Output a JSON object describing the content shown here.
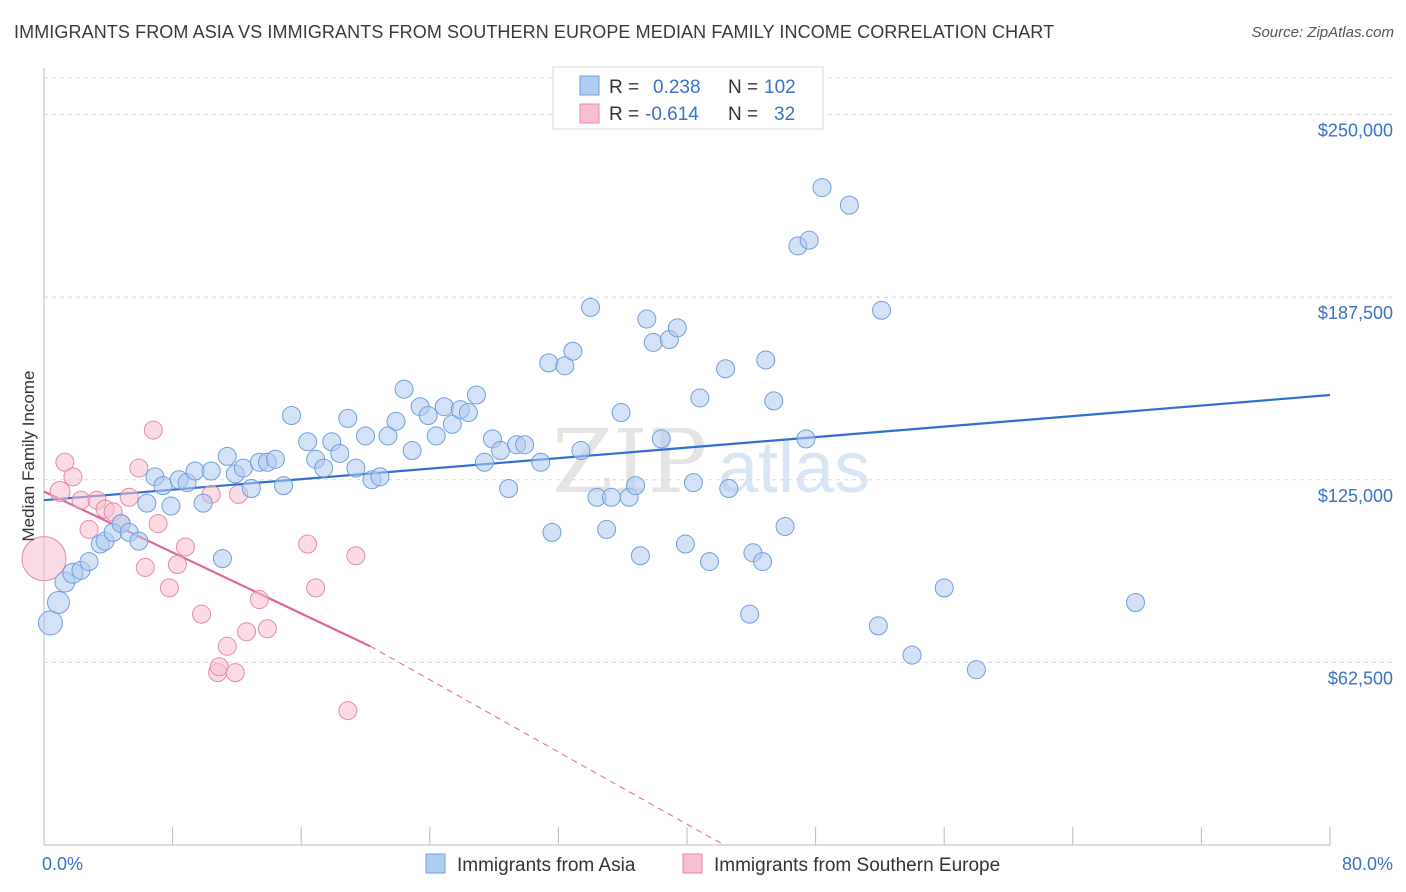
{
  "title": "IMMIGRANTS FROM ASIA VS IMMIGRANTS FROM SOUTHERN EUROPE MEDIAN FAMILY INCOME CORRELATION CHART",
  "source": "Source: ZipAtlas.com",
  "watermark": {
    "zip": "ZIP",
    "atlas": "atlas"
  },
  "legend": {
    "asia": {
      "r_label": "R =",
      "r_value": "0.238",
      "n_label": "N =",
      "n_value": "102"
    },
    "europe": {
      "r_label": "R =",
      "r_value": "-0.614",
      "n_label": "N =",
      "n_value": "32"
    }
  },
  "colors": {
    "asia_fill": "#aecbf0",
    "asia_stroke": "#6f9fdc",
    "asia_line": "#2e6fcf",
    "europe_fill": "#f7c0d0",
    "europe_stroke": "#e68aa8",
    "europe_line": "#e06591",
    "tick_label": "#3a72c4",
    "grid": "#d8d8d8"
  },
  "chart_data": {
    "type": "scatter",
    "title": "IMMIGRANTS FROM ASIA VS IMMIGRANTS FROM SOUTHERN EUROPE MEDIAN FAMILY INCOME CORRELATION CHART",
    "xlabel": "",
    "ylabel": "Median Family Income",
    "xlim": [
      0,
      80
    ],
    "ylim": [
      0,
      262500
    ],
    "x_tick_labels": [
      "0.0%",
      "80.0%"
    ],
    "y_ticks": [
      62500,
      125000,
      187500,
      250000
    ],
    "y_tick_labels": [
      "$62,500",
      "$125,000",
      "$187,500",
      "$250,000"
    ],
    "grid": true,
    "legend_position": "top-center",
    "series": [
      {
        "name": "Immigrants from Asia",
        "r": 0.238,
        "n": 102,
        "trend": {
          "x": [
            0,
            80
          ],
          "y": [
            118000,
            154000
          ]
        },
        "points": [
          [
            0.4,
            76000,
            12
          ],
          [
            0.9,
            83000,
            11
          ],
          [
            1.3,
            90000,
            10
          ],
          [
            1.8,
            93000,
            10
          ],
          [
            2.3,
            94000,
            9
          ],
          [
            2.8,
            97000,
            9
          ],
          [
            3.5,
            103000,
            9
          ],
          [
            3.8,
            104000,
            9
          ],
          [
            4.3,
            107000,
            9
          ],
          [
            4.8,
            110000,
            9
          ],
          [
            5.3,
            107000,
            9
          ],
          [
            5.9,
            104000,
            9
          ],
          [
            6.4,
            117000,
            9
          ],
          [
            6.9,
            126000,
            9
          ],
          [
            7.4,
            123000,
            9
          ],
          [
            7.9,
            116000,
            9
          ],
          [
            8.4,
            125000,
            9
          ],
          [
            8.9,
            124000,
            9
          ],
          [
            9.4,
            128000,
            9
          ],
          [
            9.9,
            117000,
            9
          ],
          [
            10.4,
            128000,
            9
          ],
          [
            11.1,
            98000,
            9
          ],
          [
            11.4,
            133000,
            9
          ],
          [
            11.9,
            127000,
            9
          ],
          [
            12.4,
            129000,
            9
          ],
          [
            12.9,
            122000,
            9
          ],
          [
            13.4,
            131000,
            9
          ],
          [
            13.9,
            131000,
            9
          ],
          [
            14.4,
            132000,
            9
          ],
          [
            14.9,
            123000,
            9
          ],
          [
            15.4,
            147000,
            9
          ],
          [
            16.4,
            138000,
            9
          ],
          [
            16.9,
            132000,
            9
          ],
          [
            17.4,
            129000,
            9
          ],
          [
            17.9,
            138000,
            9
          ],
          [
            18.4,
            134000,
            9
          ],
          [
            18.9,
            146000,
            9
          ],
          [
            19.4,
            129000,
            9
          ],
          [
            20.0,
            140000,
            9
          ],
          [
            20.4,
            125000,
            9
          ],
          [
            20.9,
            126000,
            9
          ],
          [
            21.4,
            140000,
            9
          ],
          [
            21.9,
            145000,
            9
          ],
          [
            22.4,
            156000,
            9
          ],
          [
            22.9,
            135000,
            9
          ],
          [
            23.4,
            150000,
            9
          ],
          [
            23.9,
            147000,
            9
          ],
          [
            24.4,
            140000,
            9
          ],
          [
            24.9,
            150000,
            9
          ],
          [
            25.4,
            144000,
            9
          ],
          [
            25.9,
            149000,
            9
          ],
          [
            26.4,
            148000,
            9
          ],
          [
            26.9,
            154000,
            9
          ],
          [
            27.4,
            131000,
            9
          ],
          [
            27.9,
            139000,
            9
          ],
          [
            28.4,
            135000,
            9
          ],
          [
            28.9,
            122000,
            9
          ],
          [
            29.4,
            137000,
            9
          ],
          [
            29.9,
            137000,
            9
          ],
          [
            30.9,
            131000,
            9
          ],
          [
            31.4,
            165000,
            9
          ],
          [
            31.6,
            107000,
            9
          ],
          [
            32.4,
            164000,
            9
          ],
          [
            32.9,
            169000,
            9
          ],
          [
            33.4,
            135000,
            9
          ],
          [
            34.0,
            184000,
            9
          ],
          [
            34.4,
            119000,
            9
          ],
          [
            35.0,
            108000,
            9
          ],
          [
            35.3,
            119000,
            9
          ],
          [
            35.9,
            148000,
            9
          ],
          [
            36.4,
            119000,
            9
          ],
          [
            36.8,
            123000,
            9
          ],
          [
            37.1,
            99000,
            9
          ],
          [
            37.5,
            180000,
            9
          ],
          [
            37.9,
            172000,
            9
          ],
          [
            38.4,
            139000,
            9
          ],
          [
            38.9,
            173000,
            9
          ],
          [
            39.4,
            177000,
            9
          ],
          [
            39.9,
            103000,
            9
          ],
          [
            40.4,
            124000,
            9
          ],
          [
            40.8,
            153000,
            9
          ],
          [
            41.4,
            97000,
            9
          ],
          [
            42.4,
            163000,
            9
          ],
          [
            42.6,
            122000,
            9
          ],
          [
            43.9,
            79000,
            9
          ],
          [
            44.1,
            100000,
            9
          ],
          [
            44.7,
            97000,
            9
          ],
          [
            44.9,
            166000,
            9
          ],
          [
            45.4,
            152000,
            9
          ],
          [
            46.1,
            109000,
            9
          ],
          [
            46.9,
            205000,
            9
          ],
          [
            47.4,
            139000,
            9
          ],
          [
            47.6,
            207000,
            9
          ],
          [
            48.4,
            225000,
            9
          ],
          [
            50.1,
            219000,
            9
          ],
          [
            51.9,
            75000,
            9
          ],
          [
            52.1,
            183000,
            9
          ],
          [
            54.0,
            65000,
            9
          ],
          [
            56.0,
            88000,
            9
          ],
          [
            58.0,
            60000,
            9
          ],
          [
            67.9,
            83000,
            9
          ]
        ]
      },
      {
        "name": "Immigrants from Southern Europe",
        "r": -0.614,
        "n": 32,
        "trend": {
          "x": [
            0,
            20.3
          ],
          "y": [
            121000,
            68000
          ]
        },
        "trend_dashed": {
          "x": [
            20.3,
            42.3
          ],
          "y": [
            68000,
            0
          ]
        },
        "points": [
          [
            0.0,
            98000,
            22
          ],
          [
            1.0,
            121000,
            10
          ],
          [
            1.3,
            131000,
            9
          ],
          [
            1.8,
            126000,
            9
          ],
          [
            2.3,
            118000,
            9
          ],
          [
            2.8,
            108000,
            9
          ],
          [
            3.3,
            118000,
            9
          ],
          [
            3.8,
            115000,
            9
          ],
          [
            4.3,
            114000,
            9
          ],
          [
            4.8,
            110000,
            9
          ],
          [
            5.3,
            119000,
            9
          ],
          [
            5.9,
            129000,
            9
          ],
          [
            6.3,
            95000,
            9
          ],
          [
            6.8,
            142000,
            9
          ],
          [
            7.1,
            110000,
            9
          ],
          [
            7.8,
            88000,
            9
          ],
          [
            8.3,
            96000,
            9
          ],
          [
            8.8,
            102000,
            9
          ],
          [
            9.8,
            79000,
            9
          ],
          [
            10.4,
            120000,
            9
          ],
          [
            10.8,
            59000,
            9
          ],
          [
            10.9,
            61000,
            9
          ],
          [
            11.4,
            68000,
            9
          ],
          [
            11.9,
            59000,
            9
          ],
          [
            12.1,
            120000,
            9
          ],
          [
            12.6,
            73000,
            9
          ],
          [
            13.4,
            84000,
            9
          ],
          [
            13.9,
            74000,
            9
          ],
          [
            16.4,
            103000,
            9
          ],
          [
            16.9,
            88000,
            9
          ],
          [
            18.9,
            46000,
            9
          ],
          [
            19.4,
            99000,
            9
          ]
        ]
      }
    ]
  },
  "bottom_legend": {
    "asia": "Immigrants from Asia",
    "europe": "Immigrants from Southern Europe"
  }
}
